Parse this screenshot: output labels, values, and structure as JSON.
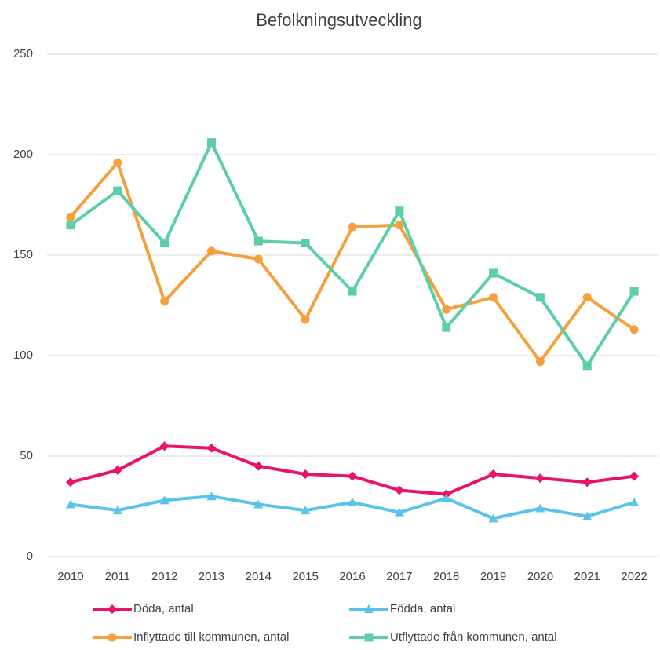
{
  "chart_data": {
    "type": "line",
    "title": "Befolkningsutveckling",
    "categories": [
      "2010",
      "2011",
      "2012",
      "2013",
      "2014",
      "2015",
      "2016",
      "2017",
      "2018",
      "2019",
      "2020",
      "2021",
      "2022"
    ],
    "series": [
      {
        "name": "Döda, antal",
        "color": "#e8136b",
        "marker": "diamond",
        "values": [
          37,
          43,
          55,
          54,
          45,
          41,
          40,
          33,
          31,
          41,
          39,
          37,
          40
        ]
      },
      {
        "name": "Födda, antal",
        "color": "#5bc3ea",
        "marker": "triangle",
        "values": [
          26,
          23,
          28,
          30,
          26,
          23,
          27,
          22,
          29,
          19,
          24,
          20,
          27
        ]
      },
      {
        "name": "Inflyttade till kommunen, antal",
        "color": "#f5a03c",
        "marker": "circle",
        "values": [
          169,
          196,
          127,
          152,
          148,
          118,
          164,
          165,
          123,
          129,
          97,
          129,
          113
        ]
      },
      {
        "name": "Utflyttade från kommunen, antal",
        "color": "#5ccfa8",
        "marker": "square",
        "values": [
          165,
          182,
          156,
          206,
          157,
          156,
          132,
          172,
          114,
          141,
          129,
          95,
          132
        ]
      }
    ],
    "ylim": [
      0,
      250
    ],
    "yticks": [
      0,
      50,
      100,
      150,
      200,
      250
    ],
    "grid": true,
    "legend": "bottom"
  }
}
